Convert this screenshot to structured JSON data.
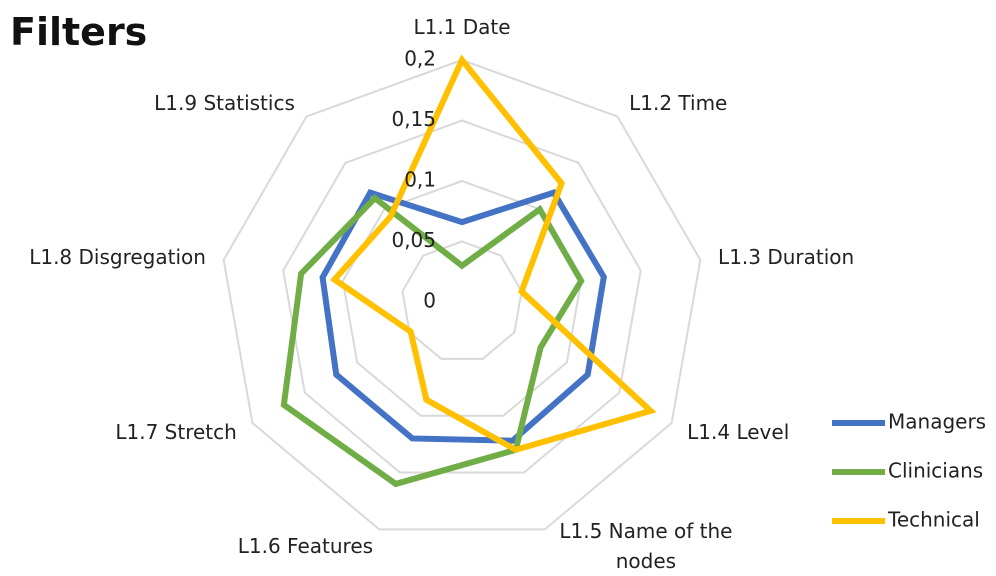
{
  "chart_data": {
    "type": "radar",
    "title": "Filters",
    "categories": [
      "L1.1 Date",
      "L1.2 Time",
      "L1.3 Duration",
      "L1.4 Level",
      "L1.5 Name of the nodes",
      "L1.6 Features",
      "L1.7 Stretch",
      "L1.8 Disgregation",
      "L1.9 Statistics"
    ],
    "series": [
      {
        "name": "Managers",
        "color": "#4472c4",
        "values": [
          0.066,
          0.118,
          0.119,
          0.12,
          0.122,
          0.12,
          0.12,
          0.117,
          0.118
        ]
      },
      {
        "name": "Clinicians",
        "color": "#70ad47",
        "values": [
          0.03,
          0.1,
          0.1,
          0.075,
          0.13,
          0.16,
          0.17,
          0.135,
          0.112
        ]
      },
      {
        "name": "Technical",
        "color": "#ffc000",
        "values": [
          0.2,
          0.128,
          0.05,
          0.18,
          0.13,
          0.086,
          0.049,
          0.107,
          0.092
        ]
      }
    ],
    "ylim": [
      0,
      0.2
    ],
    "yticks": [
      0,
      {
        "value": 0.05,
        "label": "0,05"
      },
      {
        "value": 0.1,
        "label": "0,1"
      },
      {
        "value": 0.15,
        "label": "0,15"
      },
      {
        "value": 0.2,
        "label": "0,2"
      }
    ],
    "grid": true,
    "legend": "right"
  }
}
